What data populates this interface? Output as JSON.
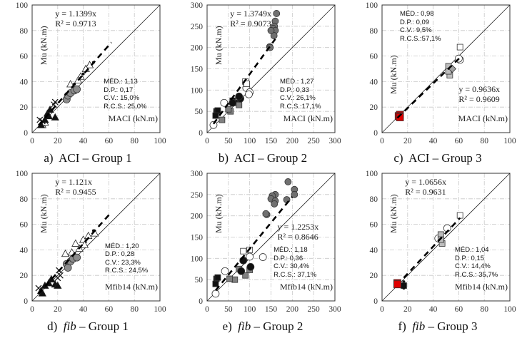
{
  "chart_data": [
    {
      "type": "scatter",
      "id": "a",
      "caption": {
        "letter": "a)",
        "method": "ACI",
        "group": "– Group 1"
      },
      "xlabel": "MACI (kN.m)",
      "ylabel": "Mu (kN.m)",
      "xlim": [
        0,
        100
      ],
      "ylim": [
        0,
        100
      ],
      "xticks": [
        0,
        20,
        40,
        60,
        80,
        100
      ],
      "yticks": [
        0,
        20,
        40,
        60,
        80,
        100
      ],
      "grid": true,
      "trendline": {
        "equation": "y = 1.1399x",
        "r2": "R² = 0.9713",
        "slope": 1.1399,
        "x_range": [
          5,
          62
        ]
      },
      "stats": [
        "MÉD.: 1,13",
        "D.P.: 0,17",
        "C.V.: 15,0%",
        "R.C.S.: 25,0%"
      ],
      "points": [
        [
          45,
          53,
          "triangle-open"
        ],
        [
          42,
          50,
          "triangle-open"
        ],
        [
          38,
          44,
          "triangle-open"
        ],
        [
          36,
          41,
          "triangle-open"
        ],
        [
          30,
          38,
          "triangle-open"
        ],
        [
          8,
          6,
          "triangle-open"
        ],
        [
          10,
          8,
          "triangle-open"
        ],
        [
          27,
          26,
          "circle-gray"
        ],
        [
          28,
          29,
          "circle-gray"
        ],
        [
          30,
          31,
          "circle-gray"
        ],
        [
          33,
          33,
          "circle-gray"
        ],
        [
          35,
          34,
          "circle-gray"
        ],
        [
          12,
          15,
          "triangle-black"
        ],
        [
          14,
          18,
          "triangle-black"
        ],
        [
          18,
          12,
          "triangle-black"
        ],
        [
          10,
          10,
          "triangle-black"
        ],
        [
          7,
          6,
          "triangle-black"
        ],
        [
          13,
          13,
          "triangle-black"
        ],
        [
          18,
          24,
          "cross"
        ],
        [
          17,
          22,
          "cross"
        ],
        [
          6,
          10,
          "cross"
        ],
        [
          8,
          9,
          "cross"
        ],
        [
          33,
          38,
          "dot-black"
        ],
        [
          40,
          46,
          "dot-black"
        ],
        [
          48,
          55,
          "dot-black"
        ]
      ]
    },
    {
      "type": "scatter",
      "id": "b",
      "caption": {
        "letter": "b)",
        "method": "ACI",
        "group": "– Group 2"
      },
      "xlabel": "MACI (kN.m)",
      "ylabel": "Mu (kN.m)",
      "xlim": [
        0,
        300
      ],
      "ylim": [
        0,
        300
      ],
      "xticks": [
        0,
        50,
        100,
        150,
        200,
        250,
        300
      ],
      "yticks": [
        0,
        50,
        100,
        150,
        200,
        250,
        300
      ],
      "grid": true,
      "trendline": {
        "equation": "y = 1.3749x",
        "r2": "R² = 0.9073",
        "slope": 1.3749,
        "x_range": [
          15,
          160
        ]
      },
      "stats": [
        "MÉD.: 1,27",
        "D.P.: 0,33",
        "C.V.: 26,1%",
        "R.C.S.:17,1%"
      ],
      "points": [
        [
          163,
          280,
          "circle-darkgray"
        ],
        [
          160,
          262,
          "circle-darkgray"
        ],
        [
          158,
          250,
          "circle-darkgray"
        ],
        [
          155,
          245,
          "circle-darkgray"
        ],
        [
          160,
          240,
          "circle-darkgray"
        ],
        [
          157,
          228,
          "circle-darkgray"
        ],
        [
          150,
          240,
          "circle-darkgray"
        ],
        [
          147,
          202,
          "circle-darkgray"
        ],
        [
          148,
          200,
          "circle-darkgray"
        ],
        [
          92,
          105,
          "circle-open"
        ],
        [
          100,
          95,
          "circle-open"
        ],
        [
          40,
          70,
          "circle-open"
        ],
        [
          15,
          18,
          "circle-open"
        ],
        [
          98,
          90,
          "circle-open"
        ],
        [
          90,
          120,
          "square-open"
        ],
        [
          93,
          115,
          "square-open"
        ],
        [
          22,
          50,
          "square-black"
        ],
        [
          25,
          52,
          "square-black"
        ],
        [
          20,
          40,
          "square-black"
        ],
        [
          60,
          75,
          "square-black"
        ],
        [
          65,
          70,
          "square-black"
        ],
        [
          55,
          50,
          "square-gray"
        ],
        [
          75,
          65,
          "square-gray"
        ],
        [
          50,
          55,
          "square-gray"
        ],
        [
          35,
          30,
          "square-gray"
        ],
        [
          78,
          80,
          "circle-black"
        ],
        [
          75,
          85,
          "circle-black"
        ],
        [
          60,
          70,
          "circle-black"
        ]
      ]
    },
    {
      "type": "scatter",
      "id": "c",
      "caption": {
        "letter": "c)",
        "method": "ACI",
        "group": "– Group 3"
      },
      "xlabel": "MACI (kN.m)",
      "ylabel": "Mu (kN.m)",
      "xlim": [
        0,
        100
      ],
      "ylim": [
        0,
        100
      ],
      "xticks": [
        0,
        20,
        40,
        60,
        80,
        100
      ],
      "yticks": [
        0,
        20,
        40,
        60,
        80,
        100
      ],
      "grid": true,
      "trendline": {
        "equation": "y = 0.9636x",
        "r2": "R² = 0.9609",
        "slope": 0.9636,
        "x_range": [
          12,
          61
        ]
      },
      "stats": [
        "MÉD.: 0,98",
        "D.P.: 0,09",
        "C.V.: 9,5%",
        "R.C.S.:57,1%"
      ],
      "points": [
        [
          12,
          11,
          "dot-black"
        ],
        [
          13,
          12,
          "dot-black"
        ],
        [
          14,
          14,
          "square-red"
        ],
        [
          13,
          13,
          "square-red"
        ],
        [
          14,
          12,
          "square-red"
        ],
        [
          52,
          52,
          "square-lightgray"
        ],
        [
          53,
          45,
          "square-lightgray"
        ],
        [
          52,
          48,
          "square-lightgray"
        ],
        [
          55,
          50,
          "diamond-gray"
        ],
        [
          61,
          67,
          "square-open"
        ],
        [
          61,
          57,
          "circle-open"
        ],
        [
          60,
          58,
          "circle-open"
        ]
      ]
    },
    {
      "type": "scatter",
      "id": "d",
      "caption": {
        "letter": "d)",
        "method": "fib",
        "group": "– Group 1"
      },
      "xlabel": "Mfib14 (kN.m)",
      "ylabel": "Mu (kN.m)",
      "xlim": [
        0,
        100
      ],
      "ylim": [
        0,
        100
      ],
      "xticks": [
        0,
        20,
        40,
        60,
        80,
        100
      ],
      "yticks": [
        0,
        20,
        40,
        60,
        80,
        100
      ],
      "grid": true,
      "trendline": {
        "equation": "y = 1.121x",
        "r2": "R² = 0.9455",
        "slope": 1.121,
        "x_range": [
          5,
          61
        ]
      },
      "stats": [
        "MÉD.: 1,20",
        "D.P.: 0,28",
        "C.V.: 23,3%",
        "R.C.S.: 24,5%"
      ],
      "points": [
        [
          26,
          37,
          "triangle-open"
        ],
        [
          31,
          38,
          "triangle-open"
        ],
        [
          34,
          45,
          "triangle-open"
        ],
        [
          37,
          41,
          "triangle-open"
        ],
        [
          40,
          48,
          "triangle-open"
        ],
        [
          41,
          44,
          "triangle-open"
        ],
        [
          44,
          51,
          "triangle-open"
        ],
        [
          49,
          53,
          "triangle-open"
        ],
        [
          27,
          29,
          "circle-gray"
        ],
        [
          28,
          26,
          "circle-gray"
        ],
        [
          30,
          31,
          "circle-gray"
        ],
        [
          32,
          33,
          "circle-gray"
        ],
        [
          35,
          34,
          "circle-gray"
        ],
        [
          13,
          14,
          "triangle-black"
        ],
        [
          15,
          17,
          "triangle-black"
        ],
        [
          18,
          13,
          "triangle-black"
        ],
        [
          20,
          12,
          "triangle-black"
        ],
        [
          10,
          12,
          "triangle-black"
        ],
        [
          7,
          8,
          "triangle-black"
        ],
        [
          8,
          6,
          "triangle-black"
        ],
        [
          21,
          24,
          "cross"
        ],
        [
          22,
          20,
          "cross"
        ],
        [
          20,
          18,
          "cross"
        ],
        [
          5,
          10,
          "cross"
        ],
        [
          48,
          55,
          "dot-black"
        ]
      ]
    },
    {
      "type": "scatter",
      "id": "e",
      "caption": {
        "letter": "e)",
        "method": "fib",
        "group": "– Group 2"
      },
      "xlabel": "Mfib14 (kN.m)",
      "ylabel": "Mu (kN.m)",
      "xlim": [
        0,
        300
      ],
      "ylim": [
        0,
        300
      ],
      "xticks": [
        0,
        50,
        100,
        150,
        200,
        250,
        300
      ],
      "yticks": [
        0,
        50,
        100,
        150,
        200,
        250,
        300
      ],
      "grid": true,
      "trendline": {
        "equation": "y = 1.2253x",
        "r2": "R² = 0.8646",
        "slope": 1.2253,
        "x_range": [
          20,
          200
        ]
      },
      "stats": [
        "MÉD.: 1,18",
        "D.P.: 0,36",
        "C.V.: 30,4%",
        "R.C.S.: 37,1%"
      ],
      "points": [
        [
          190,
          280,
          "circle-darkgray"
        ],
        [
          205,
          262,
          "circle-darkgray"
        ],
        [
          160,
          250,
          "circle-darkgray"
        ],
        [
          153,
          247,
          "circle-darkgray"
        ],
        [
          150,
          240,
          "circle-darkgray"
        ],
        [
          160,
          235,
          "circle-darkgray"
        ],
        [
          158,
          228,
          "circle-darkgray"
        ],
        [
          187,
          238,
          "circle-darkgray"
        ],
        [
          205,
          250,
          "circle-darkgray"
        ],
        [
          140,
          203,
          "circle-darkgray"
        ],
        [
          138,
          205,
          "circle-darkgray"
        ],
        [
          100,
          104,
          "circle-open"
        ],
        [
          131,
          103,
          "circle-open"
        ],
        [
          42,
          70,
          "circle-open"
        ],
        [
          20,
          17,
          "circle-open"
        ],
        [
          85,
          117,
          "square-open"
        ],
        [
          100,
          120,
          "square-open"
        ],
        [
          22,
          52,
          "square-black"
        ],
        [
          25,
          55,
          "square-black"
        ],
        [
          20,
          40,
          "square-black"
        ],
        [
          65,
          50,
          "square-gray"
        ],
        [
          53,
          52,
          "square-gray"
        ],
        [
          90,
          60,
          "square-gray"
        ],
        [
          75,
          75,
          "square-gray"
        ],
        [
          100,
          73,
          "square-gray"
        ],
        [
          102,
          80,
          "circle-black"
        ],
        [
          80,
          70,
          "circle-black"
        ],
        [
          85,
          95,
          "circle-black"
        ]
      ]
    },
    {
      "type": "scatter",
      "id": "f",
      "caption": {
        "letter": "f)",
        "method": "fib",
        "group": "– Group 3"
      },
      "xlabel": "Mfib14 (kN.m)",
      "ylabel": "Mu (kN.m)",
      "xlim": [
        0,
        100
      ],
      "ylim": [
        0,
        100
      ],
      "xticks": [
        0,
        20,
        40,
        60,
        80,
        100
      ],
      "yticks": [
        0,
        20,
        40,
        60,
        80,
        100
      ],
      "grid": true,
      "trendline": {
        "equation": "y = 1.0656x",
        "r2": "R² = 0.9631",
        "slope": 1.0656,
        "x_range": [
          17,
          61
        ]
      },
      "stats": [
        "MÉD.: 1,04",
        "D.P.: 0,15",
        "C.V.: 14,4%",
        "R.C.S.: 35,7%"
      ],
      "points": [
        [
          17,
          15,
          "dot-black"
        ],
        [
          17,
          12,
          "square-black"
        ],
        [
          17,
          10,
          "dot-black"
        ],
        [
          12,
          14,
          "square-red"
        ],
        [
          12,
          13,
          "square-red"
        ],
        [
          51,
          57,
          "circle-open"
        ],
        [
          44,
          49,
          "circle-open"
        ],
        [
          46,
          52,
          "square-lightgray"
        ],
        [
          47,
          45,
          "square-lightgray"
        ],
        [
          46,
          48,
          "square-lightgray"
        ],
        [
          61,
          67,
          "square-open"
        ]
      ]
    }
  ]
}
